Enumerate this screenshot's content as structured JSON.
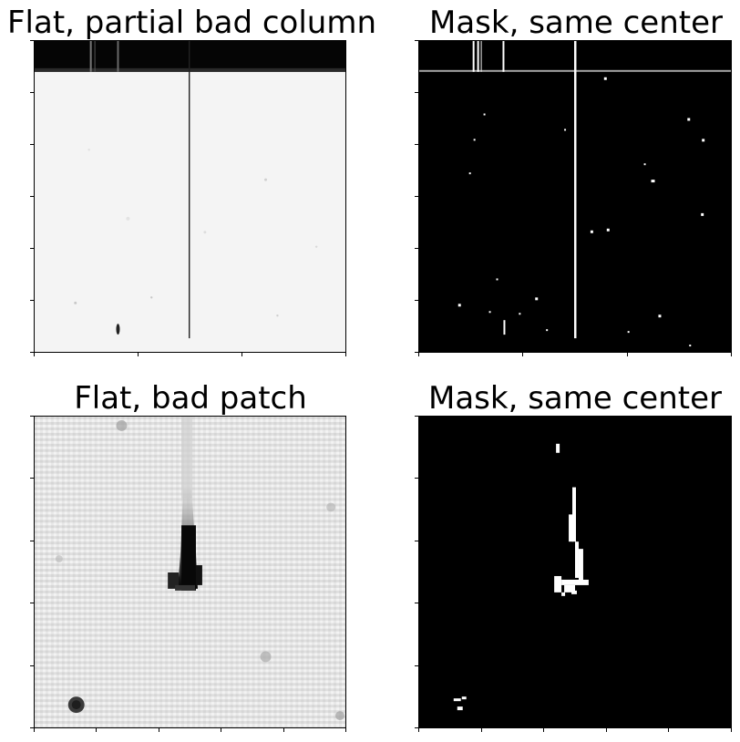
{
  "figure": {
    "panels": [
      {
        "title": "Flat, partial bad column",
        "kind": "flat-image",
        "colormap": "gray"
      },
      {
        "title": "Mask, same center",
        "kind": "mask-image",
        "colormap": "gray"
      },
      {
        "title": "Flat, bad patch",
        "kind": "flat-image",
        "colormap": "gray"
      },
      {
        "title": "Mask, same center",
        "kind": "mask-image",
        "colormap": "gray"
      }
    ]
  }
}
